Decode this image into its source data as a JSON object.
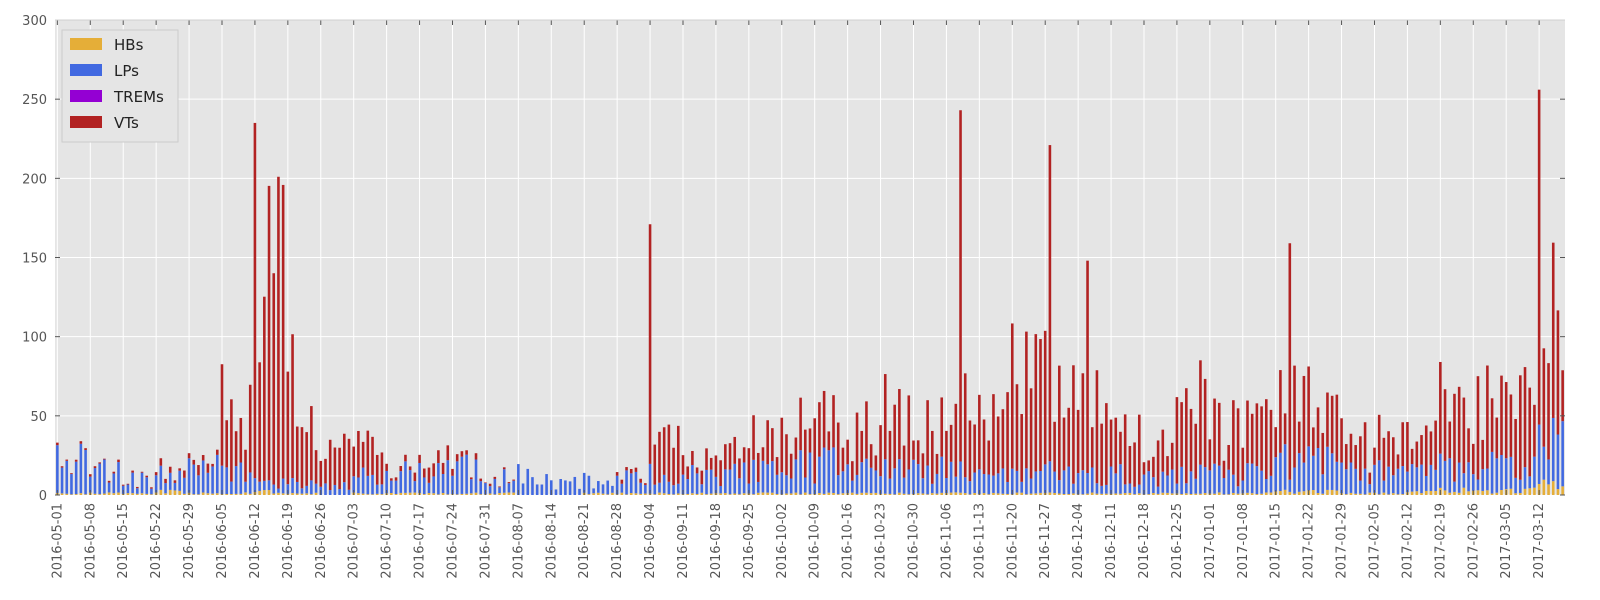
{
  "chart_data": {
    "type": "bar",
    "stacked": true,
    "ylim": [
      0,
      300
    ],
    "yticks": [
      0,
      50,
      100,
      150,
      200,
      250,
      300
    ],
    "grid": true,
    "legend_placement": "top-left",
    "x_tick_labels": [
      "2016-05-01",
      "2016-05-08",
      "2016-05-15",
      "2016-05-22",
      "2016-05-29",
      "2016-06-05",
      "2016-06-12",
      "2016-06-19",
      "2016-06-26",
      "2016-07-03",
      "2016-07-10",
      "2016-07-17",
      "2016-07-24",
      "2016-07-31",
      "2016-08-07",
      "2016-08-14",
      "2016-08-21",
      "2016-08-28",
      "2016-09-04",
      "2016-09-11",
      "2016-09-18",
      "2016-09-25",
      "2016-10-02",
      "2016-10-09",
      "2016-10-16",
      "2016-10-23",
      "2016-10-30",
      "2016-11-06",
      "2016-11-13",
      "2016-11-20",
      "2016-11-27",
      "2016-12-04",
      "2016-12-11",
      "2016-12-18",
      "2016-12-25",
      "2017-01-01",
      "2017-01-08",
      "2017-01-15",
      "2017-01-22",
      "2017-01-29",
      "2017-02-05",
      "2017-02-12",
      "2017-02-19",
      "2017-02-26",
      "2017-03-05",
      "2017-03-12"
    ],
    "series": [
      {
        "name": "HBs",
        "color": "#e5ae38"
      },
      {
        "name": "LPs",
        "color": "#4169e1"
      },
      {
        "name": "TREMs",
        "color": "#9400d3"
      },
      {
        "name": "VTs",
        "color": "#b22222"
      }
    ],
    "weekly_values": {
      "HBs": [
        1,
        1,
        1,
        2,
        1,
        1,
        2,
        1,
        0,
        1,
        1,
        1,
        1,
        1,
        0,
        0,
        1,
        1,
        1,
        1,
        1,
        1,
        1,
        1,
        1,
        1,
        1,
        1,
        1,
        1,
        1,
        1,
        1,
        1,
        1,
        1,
        1,
        2,
        2,
        1,
        1,
        2,
        3,
        2,
        3,
        6
      ],
      "LPs": [
        20,
        14,
        8,
        10,
        16,
        14,
        6,
        6,
        6,
        10,
        14,
        14,
        16,
        10,
        12,
        8,
        8,
        10,
        14,
        12,
        12,
        14,
        18,
        18,
        14,
        14,
        14,
        12,
        10,
        10,
        12,
        14,
        12,
        10,
        12,
        12,
        12,
        18,
        18,
        14,
        14,
        12,
        16,
        16,
        14,
        26
      ],
      "TREMs": [
        0,
        0,
        0,
        0,
        0,
        0,
        0,
        0,
        0,
        0,
        0,
        0,
        0,
        0,
        0,
        0,
        0,
        0,
        0,
        0,
        0,
        0,
        0,
        0,
        0,
        0,
        0,
        0,
        0,
        0,
        0,
        0,
        0,
        0,
        0,
        0,
        0,
        0,
        0,
        0,
        0,
        0,
        0,
        0,
        0,
        0
      ],
      "VTs": [
        1,
        1,
        1,
        3,
        4,
        40,
        120,
        60,
        20,
        18,
        4,
        6,
        3,
        1,
        0,
        0,
        0,
        2,
        25,
        10,
        12,
        18,
        22,
        26,
        24,
        40,
        30,
        50,
        35,
        60,
        80,
        50,
        28,
        18,
        40,
        30,
        32,
        40,
        35,
        18,
        18,
        22,
        40,
        40,
        40,
        70
      ]
    },
    "peak_values": [
      {
        "date": "2016-06-12",
        "total": 235
      },
      {
        "date": "2016-09-04",
        "total": 171
      },
      {
        "date": "2016-11-09",
        "total": 243
      },
      {
        "date": "2016-11-28",
        "total": 221
      },
      {
        "date": "2016-12-06",
        "total": 148
      },
      {
        "date": "2017-01-18",
        "total": 159
      },
      {
        "date": "2017-03-12",
        "total": 256
      }
    ]
  }
}
